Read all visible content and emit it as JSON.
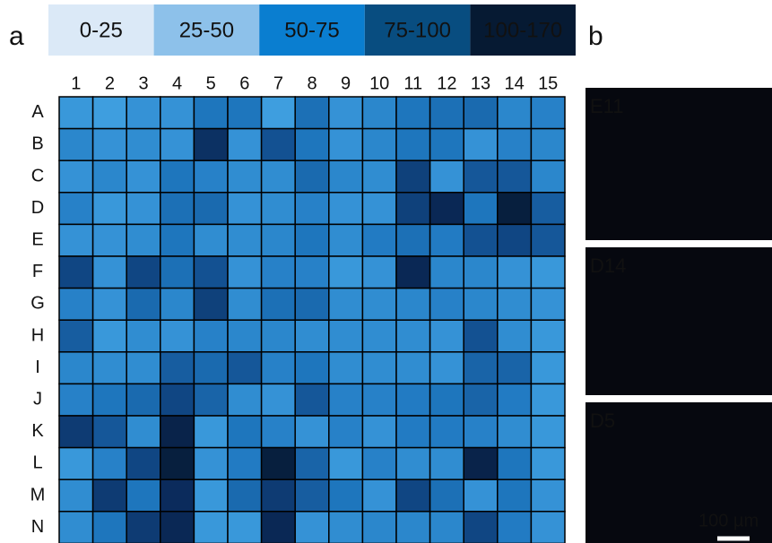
{
  "chart_data": {
    "type": "heatmap",
    "panel_labels": [
      "a",
      "b"
    ],
    "legend": [
      {
        "label": "0-25",
        "color": "#dbe9f7",
        "text_color": "#222"
      },
      {
        "label": "25-50",
        "color": "#8dc1ea",
        "text_color": "#222"
      },
      {
        "label": "50-75",
        "color": "#0a7ed0",
        "text_color": "#222"
      },
      {
        "label": "75-100",
        "color": "#084d80",
        "text_color": "#fff"
      },
      {
        "label": "100-170",
        "color": "#061a33",
        "text_color": "#fff"
      }
    ],
    "zlim": [
      0,
      170
    ],
    "colorscale": [
      "#5bbcf0",
      "#3f9fe0",
      "#1f78c0",
      "#124f8f",
      "#0b2a5a",
      "#061a33"
    ],
    "columns": [
      "1",
      "2",
      "3",
      "4",
      "5",
      "6",
      "7",
      "8",
      "9",
      "10",
      "11",
      "12",
      "13",
      "14",
      "15"
    ],
    "rows": [
      "A",
      "B",
      "C",
      "D",
      "E",
      "F",
      "G",
      "H",
      "I",
      "J",
      "K",
      "L",
      "M",
      "N"
    ],
    "values": [
      [
        40,
        35,
        45,
        45,
        70,
        70,
        35,
        75,
        45,
        55,
        70,
        75,
        80,
        55,
        60
      ],
      [
        55,
        45,
        50,
        45,
        130,
        45,
        100,
        70,
        45,
        55,
        70,
        70,
        45,
        60,
        55
      ],
      [
        45,
        55,
        45,
        70,
        60,
        50,
        50,
        80,
        55,
        50,
        115,
        45,
        95,
        95,
        55
      ],
      [
        60,
        40,
        45,
        75,
        80,
        45,
        50,
        60,
        45,
        45,
        115,
        140,
        70,
        160,
        90
      ],
      [
        45,
        45,
        50,
        70,
        50,
        50,
        55,
        70,
        50,
        65,
        75,
        65,
        100,
        110,
        95
      ],
      [
        110,
        45,
        110,
        75,
        100,
        45,
        60,
        60,
        40,
        45,
        140,
        55,
        55,
        45,
        40
      ],
      [
        60,
        45,
        80,
        55,
        115,
        50,
        75,
        80,
        50,
        50,
        55,
        60,
        55,
        50,
        45
      ],
      [
        90,
        40,
        50,
        45,
        60,
        55,
        55,
        50,
        50,
        50,
        50,
        45,
        100,
        50,
        40
      ],
      [
        55,
        50,
        50,
        90,
        80,
        95,
        60,
        70,
        50,
        50,
        50,
        45,
        85,
        85,
        40
      ],
      [
        60,
        70,
        80,
        110,
        85,
        50,
        45,
        95,
        60,
        60,
        65,
        70,
        85,
        65,
        40
      ],
      [
        120,
        95,
        50,
        150,
        40,
        70,
        60,
        45,
        60,
        45,
        65,
        65,
        60,
        50,
        40
      ],
      [
        40,
        60,
        110,
        160,
        45,
        65,
        160,
        85,
        40,
        60,
        50,
        50,
        150,
        70,
        40
      ],
      [
        50,
        120,
        70,
        135,
        40,
        80,
        120,
        90,
        70,
        45,
        110,
        75,
        45,
        70,
        45
      ],
      [
        50,
        70,
        120,
        140,
        40,
        40,
        140,
        45,
        50,
        55,
        55,
        55,
        110,
        65,
        45
      ]
    ],
    "images": [
      {
        "label": "E11"
      },
      {
        "label": "D14"
      },
      {
        "label": "D5"
      }
    ],
    "scale_bar": "100 µm"
  }
}
